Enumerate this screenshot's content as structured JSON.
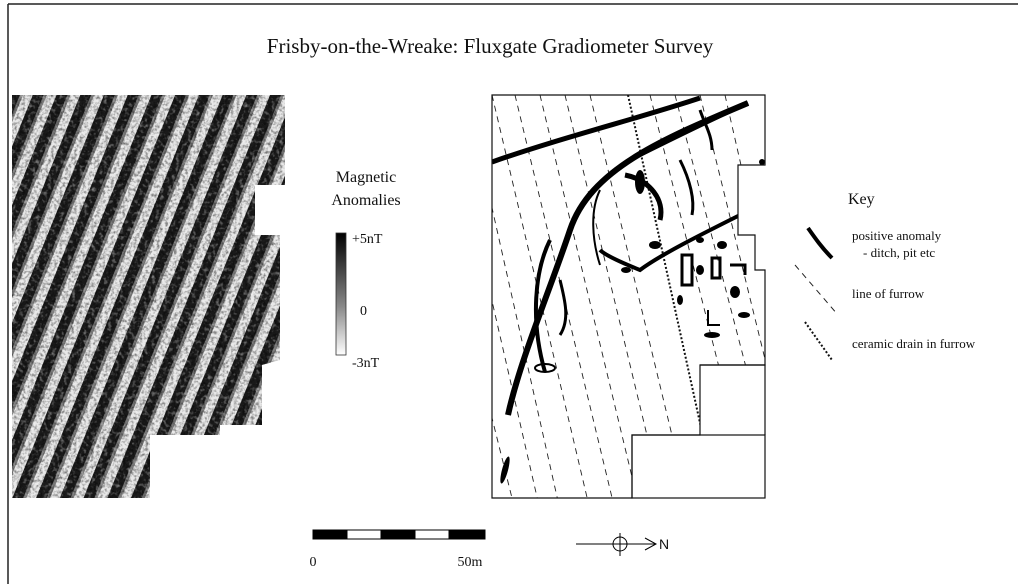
{
  "title": "Frisby-on-the-Wreake: Fluxgate Gradiometer Survey",
  "colorbar": {
    "title_lines": [
      "Magnetic",
      "Anomalies"
    ],
    "labels": [
      "+5nT",
      "0",
      "-3nT"
    ]
  },
  "key": {
    "title": "Key",
    "items": [
      {
        "label": "positive anomaly",
        "sublabel": "- ditch, pit etc"
      },
      {
        "label": "line of furrow"
      },
      {
        "label": "ceramic drain in furrow"
      }
    ]
  },
  "scale_bar": {
    "labels": [
      "0",
      "50m"
    ]
  },
  "north_arrow": {
    "label": "N"
  }
}
